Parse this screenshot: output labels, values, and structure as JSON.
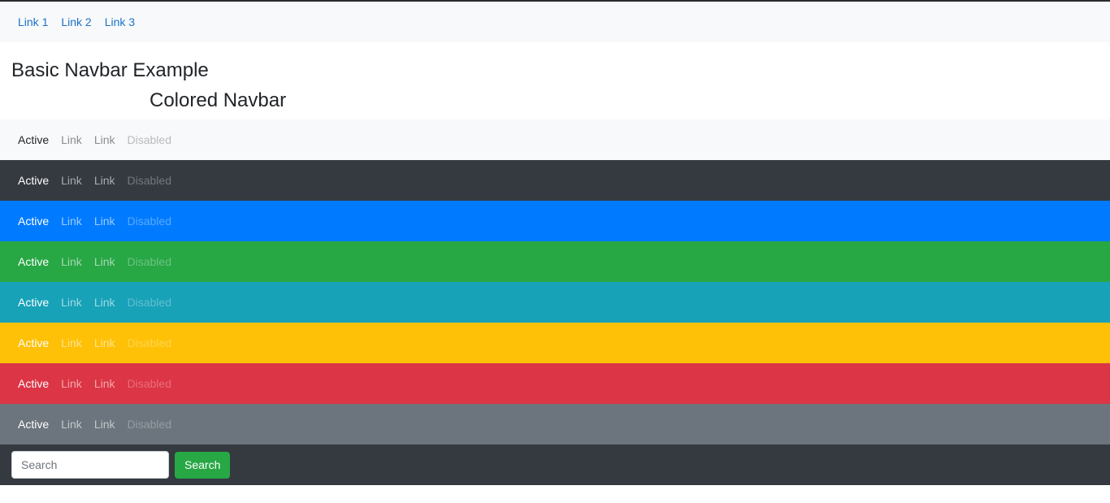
{
  "basic_nav": {
    "links": [
      "Link 1",
      "Link 2",
      "Link 3"
    ]
  },
  "headings": {
    "basic": "Basic Navbar Example",
    "colored": "Colored Navbar"
  },
  "navbar_items": {
    "active": "Active",
    "link_1": "Link",
    "link_2": "Link",
    "disabled": "Disabled"
  },
  "colors": {
    "light": "#f8f9fa",
    "dark": "#343a40",
    "primary": "#007bff",
    "success": "#28a745",
    "info": "#17a2b8",
    "warning": "#ffc107",
    "danger": "#dc3545",
    "secondary": "#6c757d",
    "link_blue": "#1a73c8"
  },
  "search": {
    "placeholder": "Search",
    "value": "",
    "button_label": "Search"
  }
}
